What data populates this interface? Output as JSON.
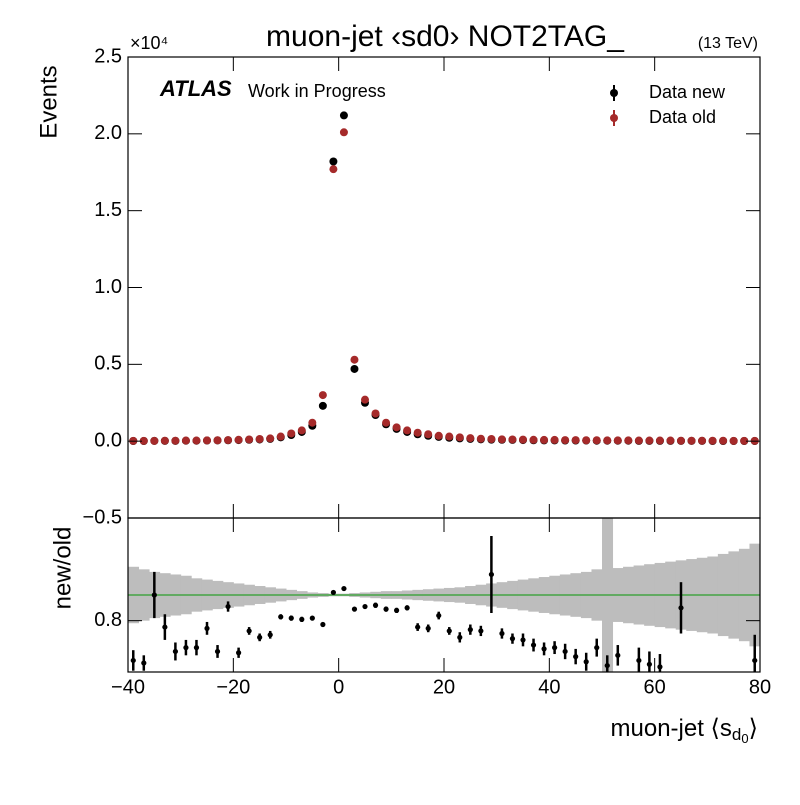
{
  "chart_data": {
    "type": "ratio-errorbar",
    "title": "muon-jet ‹sd0› NOT2TAG_",
    "energy": "(13 TeV)",
    "experiment": "ATLAS",
    "status": "Work in Progress",
    "ylabel": "Events",
    "y_multiplier": "×10⁴",
    "ratio_ylabel": "new/old",
    "xlabel_parts": [
      "muon-jet ⟨s",
      "d",
      "0",
      "⟩"
    ],
    "xlim": [
      -40,
      80
    ],
    "xticks": [
      {
        "value": -40,
        "label": "−40"
      },
      {
        "value": -20,
        "label": "−20"
      },
      0,
      20,
      40,
      60,
      80
    ],
    "ylim": [
      -0.5,
      2.5
    ],
    "yticks": [
      {
        "value": -0.5,
        "label": "−0.5"
      },
      {
        "value": 0,
        "label": "0.0"
      },
      0.5,
      {
        "value": 1,
        "label": "1.0"
      },
      1.5,
      {
        "value": 2,
        "label": "2.0"
      },
      2.5
    ],
    "ratio_ylim": [
      0.4,
      1.6
    ],
    "ratio_yticks": [
      0.8
    ],
    "ratio_reference": 1,
    "ratio_reference_color": "#2ca02c",
    "band_color": "#bdbdbd",
    "x": [
      -39,
      -37,
      -35,
      -33,
      -31,
      -29,
      -27,
      -25,
      -23,
      -21,
      -19,
      -17,
      -15,
      -13,
      -11,
      -9,
      -7,
      -5,
      -3,
      -1,
      1,
      3,
      5,
      7,
      9,
      11,
      13,
      15,
      17,
      19,
      21,
      23,
      25,
      27,
      29,
      31,
      33,
      35,
      37,
      39,
      41,
      43,
      45,
      47,
      49,
      51,
      53,
      55,
      57,
      59,
      61,
      63,
      65,
      67,
      69,
      71,
      73,
      75,
      77,
      79
    ],
    "series": [
      {
        "name": "Data new",
        "color": "#000000",
        "values": [
          0.001,
          0.001,
          0.002,
          0.002,
          0.002,
          0.003,
          0.003,
          0.004,
          0.005,
          0.006,
          0.007,
          0.009,
          0.011,
          0.015,
          0.025,
          0.04,
          0.06,
          0.1,
          0.23,
          1.82,
          2.12,
          0.47,
          0.25,
          0.17,
          0.11,
          0.08,
          0.06,
          0.045,
          0.035,
          0.028,
          0.022,
          0.018,
          0.015,
          0.012,
          0.01,
          0.009,
          0.008,
          0.007,
          0.006,
          0.005,
          0.005,
          0.004,
          0.004,
          0.004,
          0.003,
          0.003,
          0.003,
          0.003,
          0.002,
          0.002,
          0.002,
          0.002,
          0.002,
          0.002,
          0.002,
          0.001,
          0.001,
          0.001,
          0.001,
          0.001
        ]
      },
      {
        "name": "Data old",
        "color": "#a52a2a",
        "values": [
          0.002,
          0.002,
          0.002,
          0.003,
          0.003,
          0.004,
          0.004,
          0.005,
          0.006,
          0.007,
          0.009,
          0.011,
          0.014,
          0.018,
          0.03,
          0.05,
          0.07,
          0.12,
          0.3,
          1.77,
          2.01,
          0.53,
          0.27,
          0.18,
          0.12,
          0.09,
          0.07,
          0.055,
          0.045,
          0.035,
          0.03,
          0.025,
          0.02,
          0.016,
          0.014,
          0.012,
          0.011,
          0.01,
          0.009,
          0.008,
          0.008,
          0.007,
          0.007,
          0.006,
          0.006,
          0.005,
          0.005,
          0.005,
          0.004,
          0.004,
          0.004,
          0.004,
          0.003,
          0.003,
          0.003,
          0.003,
          0.003,
          0.002,
          0.002,
          0.002
        ]
      }
    ],
    "ratio": [
      0.49,
      0.47,
      1.0,
      0.75,
      0.56,
      0.59,
      0.59,
      0.74,
      0.56,
      0.91,
      0.55,
      0.72,
      0.67,
      0.69,
      0.83,
      0.82,
      0.81,
      0.82,
      0.77,
      1.02,
      1.05,
      0.89,
      0.91,
      0.92,
      0.89,
      0.88,
      0.9,
      0.75,
      0.74,
      0.84,
      0.72,
      0.67,
      0.73,
      0.72,
      1.16,
      0.7,
      0.66,
      0.65,
      0.61,
      0.58,
      0.59,
      0.56,
      0.52,
      0.48,
      0.59,
      0.45,
      0.53,
      null,
      0.49,
      0.46,
      0.44,
      null,
      0.9,
      null,
      null,
      null,
      null,
      null,
      null,
      0.49
    ],
    "ratio_errors": [
      0.08,
      0.06,
      0.18,
      0.1,
      0.07,
      0.06,
      0.06,
      0.05,
      0.05,
      0.04,
      0.04,
      0.03,
      0.03,
      0.03,
      0.02,
      0.02,
      0.02,
      0.01,
      0.01,
      0.005,
      0.005,
      0.01,
      0.01,
      0.02,
      0.02,
      0.02,
      0.02,
      0.03,
      0.03,
      0.03,
      0.03,
      0.04,
      0.04,
      0.04,
      0.3,
      0.04,
      0.04,
      0.05,
      0.05,
      0.05,
      0.05,
      0.06,
      0.06,
      0.07,
      0.07,
      0.08,
      0.08,
      null,
      0.1,
      0.1,
      0.1,
      null,
      0.2,
      null,
      null,
      null,
      null,
      null,
      null,
      0.2
    ],
    "band_halfwidth": [
      0.22,
      0.2,
      0.18,
      0.17,
      0.16,
      0.15,
      0.13,
      0.12,
      0.11,
      0.1,
      0.09,
      0.08,
      0.07,
      0.06,
      0.05,
      0.04,
      0.03,
      0.02,
      0.015,
      0.01,
      0.01,
      0.015,
      0.02,
      0.025,
      0.03,
      0.03,
      0.035,
      0.04,
      0.045,
      0.05,
      0.055,
      0.06,
      0.07,
      0.08,
      0.09,
      0.1,
      0.11,
      0.12,
      0.13,
      0.14,
      0.15,
      0.16,
      0.17,
      0.18,
      0.2,
      0.6,
      0.21,
      0.22,
      0.23,
      0.24,
      0.25,
      0.26,
      0.27,
      0.28,
      0.29,
      0.3,
      0.32,
      0.34,
      0.36,
      0.4
    ]
  }
}
